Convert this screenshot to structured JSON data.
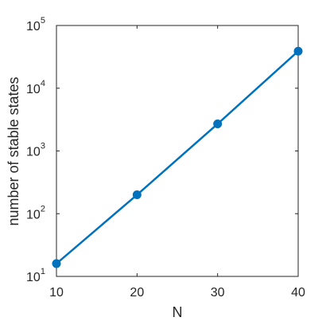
{
  "chart_data": {
    "type": "line",
    "x_label": "N",
    "y_label": "number of stable states",
    "x": [
      10,
      20,
      30,
      40
    ],
    "series": [
      {
        "color": "#0072bd",
        "values": [
          16,
          200,
          2700,
          39000
        ]
      }
    ],
    "xlim": [
      10,
      40
    ],
    "xticks": [
      10,
      20,
      30,
      40
    ],
    "ylim": [
      10,
      100000
    ],
    "y_scale": "log",
    "yticks": [
      {
        "value": 10,
        "label": "10",
        "exponent": "1"
      },
      {
        "value": 100,
        "label": "10",
        "exponent": "2"
      },
      {
        "value": 1000,
        "label": "10",
        "exponent": "3"
      },
      {
        "value": 10000,
        "label": "10",
        "exponent": "4"
      },
      {
        "value": 100000,
        "label": "10",
        "exponent": "5"
      }
    ],
    "grid": false
  }
}
